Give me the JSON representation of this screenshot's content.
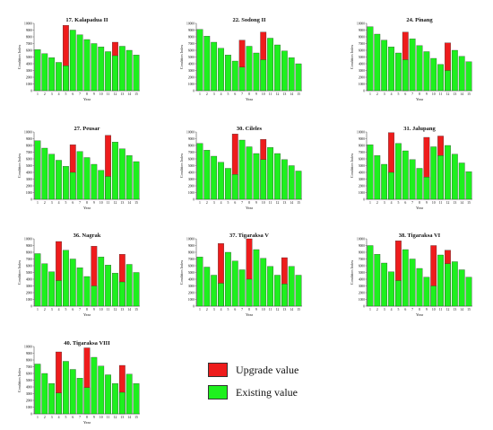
{
  "colors": {
    "upgrade": "#ee1c1c",
    "existing": "#1ef01e",
    "bar_stroke": "#222222"
  },
  "legend": {
    "upgrade_label": "Upgrade value",
    "existing_label": "Existing value"
  },
  "chart_data": [
    {
      "type": "bar",
      "title": "17. Kalapadua II",
      "xlabel": "Year",
      "ylabel": "Condition Index",
      "ylim": [
        0,
        10000
      ],
      "categories": [
        "1",
        "2",
        "3",
        "4",
        "5",
        "6",
        "7",
        "8",
        "9",
        "10",
        "11",
        "12",
        "13",
        "14",
        "15"
      ],
      "series": [
        {
          "name": "Existing value",
          "values": [
            6100,
            5500,
            4900,
            4200,
            3700,
            9000,
            8300,
            7600,
            7000,
            6500,
            5800,
            5200,
            6600,
            6000,
            5300
          ]
        },
        {
          "name": "Upgrade value",
          "values": [
            null,
            null,
            null,
            null,
            9700,
            null,
            null,
            null,
            null,
            null,
            null,
            7200,
            null,
            null,
            null
          ]
        }
      ]
    },
    {
      "type": "bar",
      "title": "22. Sodong II",
      "xlabel": "Year",
      "ylabel": "Condition Index",
      "ylim": [
        0,
        10000
      ],
      "categories": [
        "1",
        "2",
        "3",
        "4",
        "5",
        "6",
        "7",
        "8",
        "9",
        "10",
        "11",
        "12",
        "13",
        "14",
        "15"
      ],
      "series": [
        {
          "name": "Existing value",
          "values": [
            9100,
            8100,
            7200,
            6300,
            5300,
            4400,
            3500,
            6600,
            5600,
            4600,
            7800,
            6800,
            5900,
            4900,
            4000
          ]
        },
        {
          "name": "Upgrade value",
          "values": [
            null,
            null,
            null,
            null,
            null,
            null,
            7500,
            null,
            null,
            8700,
            null,
            null,
            null,
            null,
            null
          ]
        }
      ]
    },
    {
      "type": "bar",
      "title": "24. Pinang",
      "xlabel": "Year",
      "ylabel": "Condition Index",
      "ylim": [
        0,
        10000
      ],
      "categories": [
        "1",
        "2",
        "3",
        "4",
        "5",
        "6",
        "7",
        "8",
        "9",
        "10",
        "11",
        "12",
        "13",
        "14",
        "15"
      ],
      "series": [
        {
          "name": "Existing value",
          "values": [
            9500,
            8400,
            7500,
            6500,
            5600,
            4600,
            7700,
            6700,
            5800,
            4800,
            3900,
            3000,
            6000,
            5100,
            4300
          ]
        },
        {
          "name": "Upgrade value",
          "values": [
            null,
            null,
            null,
            null,
            null,
            8700,
            null,
            null,
            null,
            null,
            null,
            7100,
            null,
            null,
            null
          ]
        }
      ]
    },
    {
      "type": "bar",
      "title": "27. Peusar",
      "xlabel": "Year",
      "ylabel": "Condition Index",
      "ylim": [
        0,
        10000
      ],
      "categories": [
        "1",
        "2",
        "3",
        "4",
        "5",
        "6",
        "7",
        "8",
        "9",
        "10",
        "11",
        "12",
        "13",
        "14",
        "15"
      ],
      "series": [
        {
          "name": "Existing value",
          "values": [
            8700,
            7600,
            6700,
            5800,
            4900,
            4000,
            7100,
            6200,
            5200,
            4300,
            3400,
            8500,
            7500,
            6500,
            5600
          ]
        },
        {
          "name": "Upgrade value",
          "values": [
            null,
            null,
            null,
            null,
            null,
            8100,
            null,
            null,
            null,
            null,
            9500,
            null,
            null,
            null,
            null
          ]
        }
      ]
    },
    {
      "type": "bar",
      "title": "30. Cileles",
      "xlabel": "Year",
      "ylabel": "Condition Index",
      "ylim": [
        0,
        10000
      ],
      "categories": [
        "1",
        "2",
        "3",
        "4",
        "5",
        "6",
        "7",
        "8",
        "9",
        "10",
        "11",
        "12",
        "13",
        "14",
        "15"
      ],
      "series": [
        {
          "name": "Existing value",
          "values": [
            8300,
            7300,
            6400,
            5500,
            4600,
            3700,
            8800,
            7800,
            6800,
            5900,
            7700,
            6800,
            5900,
            5000,
            4200
          ]
        },
        {
          "name": "Upgrade value",
          "values": [
            null,
            null,
            null,
            null,
            null,
            9700,
            null,
            null,
            null,
            8900,
            null,
            null,
            null,
            null,
            null
          ]
        }
      ]
    },
    {
      "type": "bar",
      "title": "31. Jalupang",
      "xlabel": "Year",
      "ylabel": "Condition Index",
      "ylim": [
        0,
        10000
      ],
      "categories": [
        "1",
        "2",
        "3",
        "4",
        "5",
        "6",
        "7",
        "8",
        "9",
        "10",
        "11",
        "12",
        "13",
        "14",
        "15"
      ],
      "series": [
        {
          "name": "Existing value",
          "values": [
            8100,
            6500,
            5200,
            4000,
            8300,
            7200,
            5900,
            4600,
            3300,
            7800,
            6500,
            8000,
            6700,
            5400,
            4100
          ]
        },
        {
          "name": "Upgrade value",
          "values": [
            null,
            null,
            null,
            9900,
            null,
            null,
            null,
            null,
            9200,
            null,
            9400,
            null,
            null,
            null,
            null
          ]
        }
      ]
    },
    {
      "type": "bar",
      "title": "36. Nagrak",
      "xlabel": "Year",
      "ylabel": "Condition Index",
      "ylim": [
        0,
        10000
      ],
      "categories": [
        "1",
        "2",
        "3",
        "4",
        "5",
        "6",
        "7",
        "8",
        "9",
        "10",
        "11",
        "12",
        "13",
        "14",
        "15"
      ],
      "series": [
        {
          "name": "Existing value",
          "values": [
            7800,
            6300,
            5100,
            3800,
            8300,
            7000,
            5700,
            4400,
            3000,
            7300,
            6100,
            4900,
            3600,
            6200,
            5000
          ]
        },
        {
          "name": "Upgrade value",
          "values": [
            null,
            null,
            null,
            9600,
            null,
            null,
            null,
            null,
            8900,
            null,
            null,
            null,
            7700,
            null,
            null
          ]
        }
      ]
    },
    {
      "type": "bar",
      "title": "37. Tigaraksa V",
      "xlabel": "Year",
      "ylabel": "Condition Index",
      "ylim": [
        0,
        10000
      ],
      "categories": [
        "1",
        "2",
        "3",
        "4",
        "5",
        "6",
        "7",
        "8",
        "9",
        "10",
        "11",
        "12",
        "13",
        "14",
        "15"
      ],
      "series": [
        {
          "name": "Existing value",
          "values": [
            7300,
            5800,
            4600,
            3400,
            8000,
            6700,
            5400,
            4000,
            8400,
            7100,
            5900,
            4600,
            3300,
            5900,
            4600
          ]
        },
        {
          "name": "Upgrade value",
          "values": [
            null,
            null,
            null,
            9300,
            null,
            null,
            null,
            10000,
            null,
            null,
            null,
            null,
            7200,
            null,
            null
          ]
        }
      ]
    },
    {
      "type": "bar",
      "title": "38. Tigaraksa VI",
      "xlabel": "Year",
      "ylabel": "Condition Index",
      "ylim": [
        0,
        10000
      ],
      "categories": [
        "1",
        "2",
        "3",
        "4",
        "5",
        "6",
        "7",
        "8",
        "9",
        "10",
        "11",
        "12",
        "13",
        "14",
        "15"
      ],
      "series": [
        {
          "name": "Existing value",
          "values": [
            9000,
            7700,
            6400,
            5100,
            3800,
            8400,
            7000,
            5600,
            4300,
            3000,
            7600,
            6300,
            6600,
            5400,
            4300
          ]
        },
        {
          "name": "Upgrade value",
          "values": [
            null,
            null,
            null,
            null,
            9700,
            null,
            null,
            null,
            null,
            9000,
            null,
            8300,
            null,
            null,
            null
          ]
        }
      ]
    },
    {
      "type": "bar",
      "title": "40. Tigaraksa VIII",
      "xlabel": "Year",
      "ylabel": "Condition Index",
      "ylim": [
        0,
        10000
      ],
      "categories": [
        "1",
        "2",
        "3",
        "4",
        "5",
        "6",
        "7",
        "8",
        "9",
        "10",
        "11",
        "12",
        "13",
        "14",
        "15"
      ],
      "series": [
        {
          "name": "Existing value",
          "values": [
            7400,
            6000,
            4500,
            3100,
            7800,
            6600,
            5300,
            3900,
            8400,
            7100,
            5800,
            4500,
            3200,
            5900,
            4500
          ]
        },
        {
          "name": "Upgrade value",
          "values": [
            null,
            null,
            null,
            9200,
            null,
            null,
            null,
            9800,
            null,
            null,
            null,
            null,
            7200,
            null,
            null
          ]
        }
      ]
    }
  ]
}
